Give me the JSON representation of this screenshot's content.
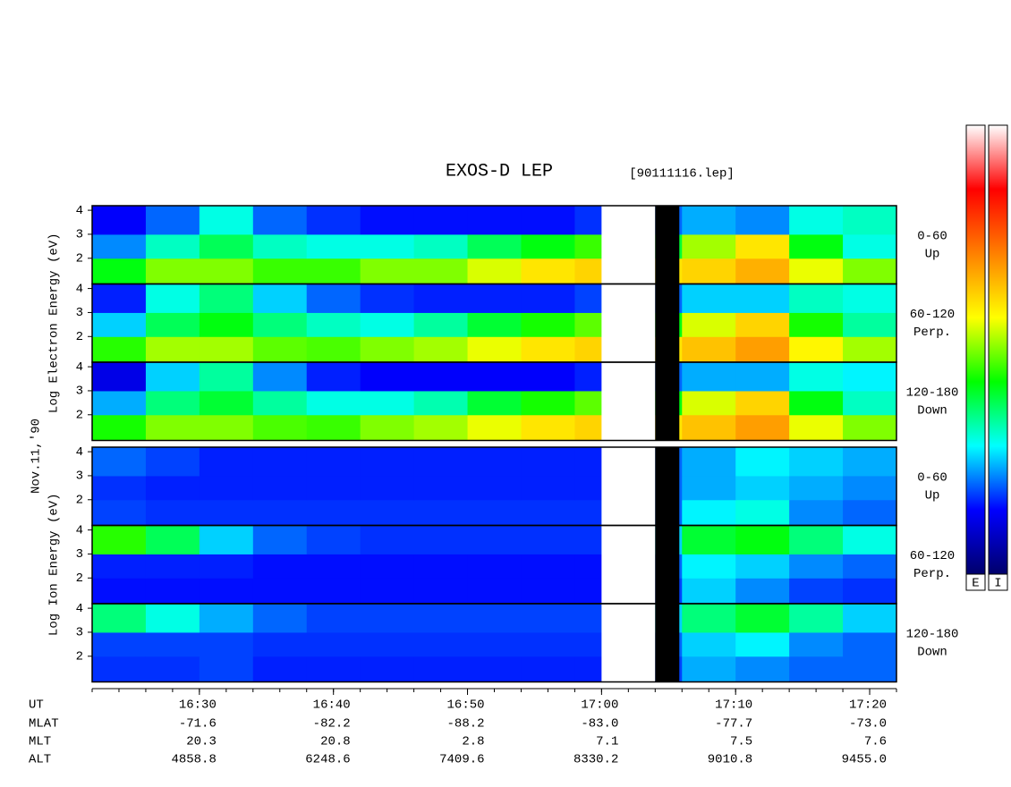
{
  "chart_data": {
    "type": "spectrogram",
    "title": "EXOS-D LEP",
    "file_label": "[90111116.lep]",
    "date_label": "Nov.11,'90",
    "xlim": [
      982,
      1042
    ],
    "xticks": [
      {
        "value": 990,
        "label": "16:30"
      },
      {
        "value": 1000,
        "label": "16:40"
      },
      {
        "value": 1010,
        "label": "16:50"
      },
      {
        "value": 1020,
        "label": "17:00"
      },
      {
        "value": 1030,
        "label": "17:10"
      },
      {
        "value": 1040,
        "label": "17:20"
      }
    ],
    "minor_tick_step": 2,
    "ylim": [
      0.93,
      4.19
    ],
    "yticks": [
      2,
      3,
      4
    ],
    "time_bins": [
      982,
      986,
      990,
      994,
      998,
      1002,
      1006,
      1010,
      1014,
      1018,
      1022,
      1026,
      1030,
      1034,
      1038,
      1042
    ],
    "energy_bins": [
      0.93,
      2,
      3,
      4.19
    ],
    "colorscale": [
      "#00006a",
      "#0000ff",
      "#00ffff",
      "#00ff00",
      "#ffff00",
      "#ff8000",
      "#ff0000",
      "#ffffff"
    ],
    "colorbar_labels": [
      "E",
      "I"
    ],
    "gaps": [
      {
        "start": 1020,
        "end": 1024,
        "color": "#ffffff"
      },
      {
        "start": 1024,
        "end": 1025.8,
        "color": "#000000"
      }
    ],
    "ephemeris": [
      {
        "name": "UT",
        "values": [
          "16:30",
          "16:40",
          "16:50",
          "17:00",
          "17:10",
          "17:20"
        ]
      },
      {
        "name": "MLAT",
        "values": [
          "-71.6",
          "-82.2",
          "-88.2",
          "-83.0",
          "-77.7",
          "-73.0"
        ]
      },
      {
        "name": "MLT",
        "values": [
          "20.3",
          "20.8",
          "2.8",
          "7.1",
          "7.5",
          "7.6"
        ]
      },
      {
        "name": "ALT",
        "values": [
          "4858.8",
          "6248.6",
          "7409.6",
          "8330.2",
          "9010.8",
          "9455.0"
        ]
      }
    ],
    "groups": [
      {
        "ylabel": "Log  Electron  Energy (eV)",
        "panels": [
          {
            "label": [
              "0-60",
              "Up"
            ],
            "values": [
              [
                0.42,
                0.5,
                0.5,
                0.46,
                0.46,
                0.5,
                0.5,
                0.55,
                0.6,
                0.62,
                0.6,
                0.62,
                0.66,
                0.56,
                0.5
              ],
              [
                0.22,
                0.32,
                0.38,
                0.32,
                0.3,
                0.3,
                0.32,
                0.38,
                0.42,
                0.46,
                0.4,
                0.52,
                0.6,
                0.42,
                0.3
              ],
              [
                0.14,
                0.2,
                0.3,
                0.2,
                0.17,
                0.15,
                0.15,
                0.15,
                0.15,
                0.17,
                0.2,
                0.24,
                0.22,
                0.3,
                0.32
              ]
            ]
          },
          {
            "label": [
              "60-120",
              "Perp."
            ],
            "values": [
              [
                0.45,
                0.52,
                0.52,
                0.48,
                0.47,
                0.5,
                0.52,
                0.56,
                0.6,
                0.62,
                0.6,
                0.64,
                0.68,
                0.58,
                0.52
              ],
              [
                0.26,
                0.38,
                0.42,
                0.36,
                0.32,
                0.3,
                0.34,
                0.4,
                0.44,
                0.48,
                0.42,
                0.55,
                0.62,
                0.44,
                0.34
              ],
              [
                0.16,
                0.3,
                0.36,
                0.26,
                0.2,
                0.17,
                0.16,
                0.16,
                0.16,
                0.18,
                0.2,
                0.26,
                0.26,
                0.32,
                0.3
              ]
            ]
          },
          {
            "label": [
              "120-180",
              "Down"
            ],
            "values": [
              [
                0.44,
                0.5,
                0.5,
                0.47,
                0.46,
                0.5,
                0.52,
                0.56,
                0.6,
                0.62,
                0.6,
                0.64,
                0.68,
                0.56,
                0.5
              ],
              [
                0.24,
                0.36,
                0.4,
                0.34,
                0.3,
                0.3,
                0.33,
                0.4,
                0.44,
                0.48,
                0.42,
                0.55,
                0.62,
                0.42,
                0.32
              ],
              [
                0.12,
                0.26,
                0.34,
                0.22,
                0.16,
                0.14,
                0.14,
                0.14,
                0.14,
                0.16,
                0.2,
                0.24,
                0.24,
                0.3,
                0.28
              ]
            ]
          }
        ]
      },
      {
        "ylabel": "Log  Ion  Energy (eV)",
        "panels": [
          {
            "label": [
              "0-60",
              "Up"
            ],
            "values": [
              [
                0.18,
                0.17,
                0.17,
                0.17,
                0.17,
                0.17,
                0.17,
                0.17,
                0.17,
                0.17,
                0.2,
                0.28,
                0.3,
                0.22,
                0.2
              ],
              [
                0.17,
                0.16,
                0.16,
                0.16,
                0.16,
                0.16,
                0.16,
                0.16,
                0.16,
                0.16,
                0.2,
                0.24,
                0.26,
                0.24,
                0.22
              ],
              [
                0.2,
                0.18,
                0.16,
                0.16,
                0.16,
                0.16,
                0.16,
                0.16,
                0.16,
                0.16,
                0.2,
                0.24,
                0.28,
                0.26,
                0.24
              ]
            ]
          },
          {
            "label": [
              "60-120",
              "Perp."
            ],
            "values": [
              [
                0.15,
                0.15,
                0.15,
                0.15,
                0.15,
                0.15,
                0.15,
                0.15,
                0.15,
                0.15,
                0.18,
                0.26,
                0.22,
                0.18,
                0.17
              ],
              [
                0.16,
                0.16,
                0.16,
                0.15,
                0.15,
                0.15,
                0.15,
                0.15,
                0.15,
                0.15,
                0.2,
                0.28,
                0.26,
                0.22,
                0.2
              ],
              [
                0.45,
                0.38,
                0.26,
                0.2,
                0.18,
                0.17,
                0.17,
                0.17,
                0.17,
                0.17,
                0.26,
                0.4,
                0.42,
                0.36,
                0.3
              ]
            ]
          },
          {
            "label": [
              "120-180",
              "Down"
            ],
            "values": [
              [
                0.17,
                0.17,
                0.18,
                0.16,
                0.16,
                0.16,
                0.16,
                0.16,
                0.16,
                0.16,
                0.18,
                0.24,
                0.22,
                0.2,
                0.2
              ],
              [
                0.18,
                0.18,
                0.18,
                0.17,
                0.17,
                0.17,
                0.17,
                0.17,
                0.17,
                0.17,
                0.2,
                0.26,
                0.28,
                0.22,
                0.2
              ],
              [
                0.36,
                0.3,
                0.24,
                0.2,
                0.18,
                0.18,
                0.18,
                0.18,
                0.18,
                0.18,
                0.26,
                0.36,
                0.4,
                0.34,
                0.26
              ]
            ]
          }
        ]
      }
    ]
  }
}
